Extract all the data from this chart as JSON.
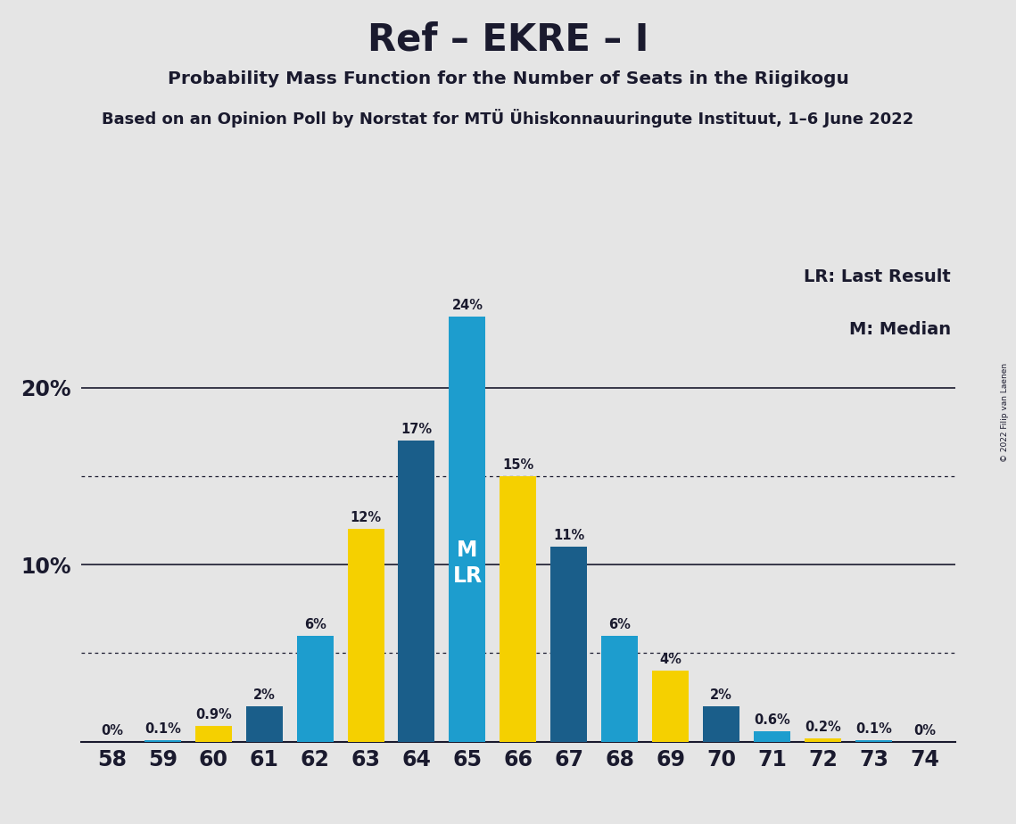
{
  "title": "Ref – EKRE – I",
  "subtitle": "Probability Mass Function for the Number of Seats in the Riigikogu",
  "subtitle2": "Based on an Opinion Poll by Norstat for MTÜ Ühiskonnauuringute Instituut, 1–6 June 2022",
  "copyright": "© 2022 Filip van Laenen",
  "legend_lr": "LR: Last Result",
  "legend_m": "M: Median",
  "seats": [
    58,
    59,
    60,
    61,
    62,
    63,
    64,
    65,
    66,
    67,
    68,
    69,
    70,
    71,
    72,
    73,
    74
  ],
  "pmf_values": [
    0.0,
    0.1,
    0.9,
    2.0,
    6.0,
    12.0,
    17.0,
    24.0,
    15.0,
    11.0,
    6.0,
    4.0,
    2.0,
    0.6,
    0.2,
    0.1,
    0.0
  ],
  "pmf_labels": [
    "0%",
    "0.1%",
    "0.9%",
    "2%",
    "6%",
    "12%",
    "17%",
    "24%",
    "15%",
    "11%",
    "6%",
    "4%",
    "2%",
    "0.6%",
    "0.2%",
    "0.1%",
    "0%"
  ],
  "bar_colors": [
    "#1D7AB5",
    "#1D7AB5",
    "#F5D000",
    "#1A5E8A",
    "#1D9DCE",
    "#F5D000",
    "#1A5E8A",
    "#1D9DCE",
    "#F5D000",
    "#1A5E8A",
    "#1D9DCE",
    "#F5D000",
    "#1A5E8A",
    "#1D9DCE",
    "#F5D000",
    "#1D9DCE",
    "#1D9DCE"
  ],
  "median_seat": 65,
  "lr_seat": 65,
  "blue_light": "#1D9DCE",
  "blue_dark": "#1A5E8A",
  "yellow": "#F5D000",
  "background_color": "#E5E5E5",
  "ylim": [
    0,
    27
  ],
  "ytick_positions": [
    10,
    20
  ],
  "ytick_labels": [
    "10%",
    "20%"
  ],
  "dotted_lines": [
    5.0,
    15.0
  ],
  "solid_lines": [
    10.0,
    20.0
  ]
}
